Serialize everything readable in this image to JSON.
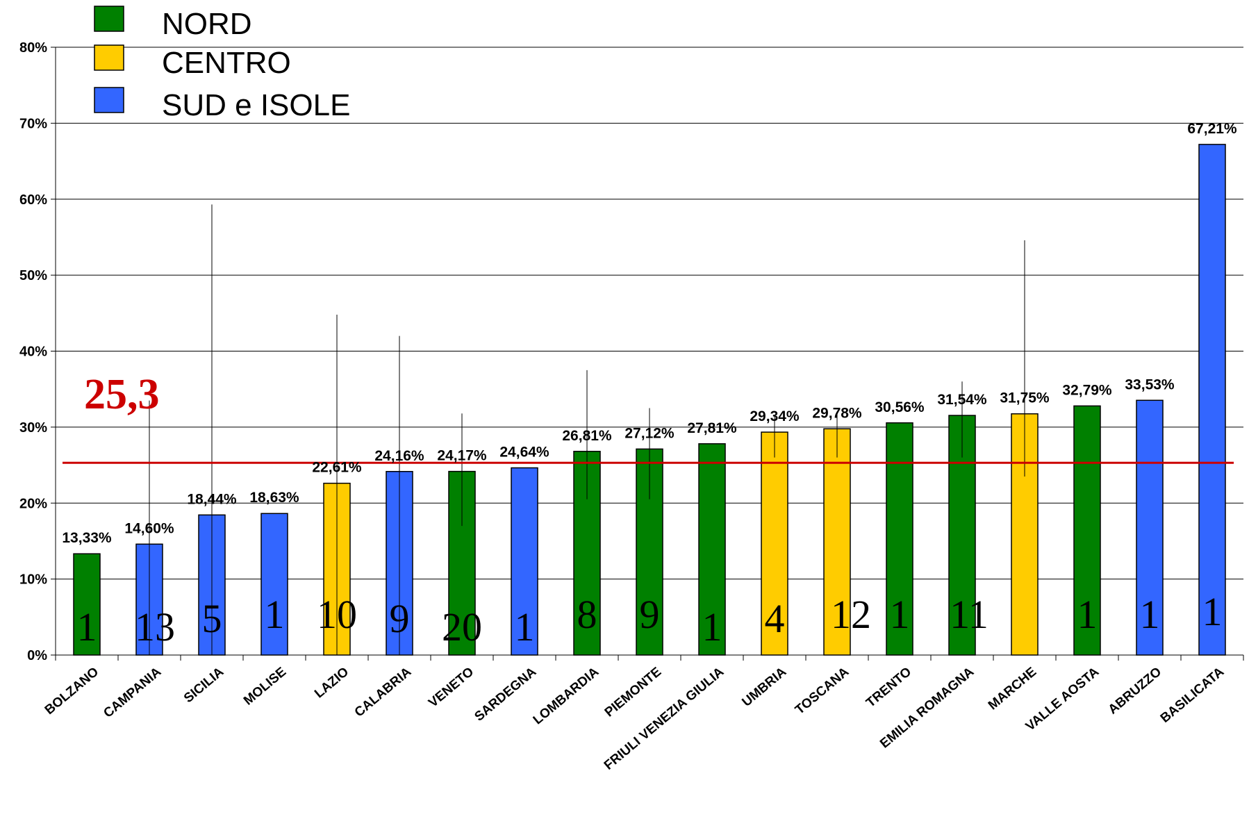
{
  "chart_data": {
    "type": "bar",
    "ylim": [
      0,
      80
    ],
    "yticks": [
      "0%",
      "10%",
      "20%",
      "30%",
      "40%",
      "50%",
      "60%",
      "70%",
      "80%"
    ],
    "grid": true,
    "legend_position": "top-left",
    "legend": [
      {
        "label": "NORD",
        "color": "#008000"
      },
      {
        "label": "CENTRO",
        "color": "#ffcc00"
      },
      {
        "label": "SUD e ISOLE",
        "color": "#3366ff"
      }
    ],
    "average": {
      "value": 25.3,
      "label": "25,3",
      "color": "#cc0000"
    },
    "categories": [
      "BOLZANO",
      "CAMPANIA",
      "SICILIA",
      "MOLISE",
      "LAZIO",
      "CALABRIA",
      "VENETO",
      "SARDEGNA",
      "LOMBARDIA",
      "PIEMONTE",
      "FRIULI VENEZIA GIULIA",
      "UMBRIA",
      "TOSCANA",
      "TRENTO",
      "EMILIA ROMAGNA",
      "MARCHE",
      "VALLE AOSTA",
      "ABRUZZO",
      "BASILICATA"
    ],
    "values": [
      13.33,
      14.6,
      18.44,
      18.63,
      22.61,
      24.16,
      24.17,
      24.64,
      26.81,
      27.12,
      27.81,
      29.34,
      29.78,
      30.56,
      31.54,
      31.75,
      32.79,
      33.53,
      67.21
    ],
    "value_labels": [
      "13,33%",
      "14,60%",
      "18,44%",
      "18,63%",
      "22,61%",
      "24,16%",
      "24,17%",
      "24,64%",
      "26,81%",
      "27,12%",
      "27,81%",
      "29,34%",
      "29,78%",
      "30,56%",
      "31,54%",
      "31,75%",
      "32,79%",
      "33,53%",
      "67,21%"
    ],
    "groups": [
      "NORD",
      "SUD e ISOLE",
      "SUD e ISOLE",
      "SUD e ISOLE",
      "CENTRO",
      "SUD e ISOLE",
      "NORD",
      "SUD e ISOLE",
      "NORD",
      "NORD",
      "NORD",
      "CENTRO",
      "CENTRO",
      "NORD",
      "NORD",
      "CENTRO",
      "NORD",
      "SUD e ISOLE",
      "SUD e ISOLE"
    ],
    "counts": [
      "1",
      "13",
      "5",
      "1",
      "10",
      "9",
      "20",
      "1",
      "8",
      "9",
      "1",
      "4",
      "12",
      "1",
      "11",
      "",
      "1",
      "1",
      "1"
    ],
    "error_bars": [
      null,
      [
        0,
        33.5
      ],
      [
        0,
        59.3
      ],
      null,
      [
        0,
        44.8
      ],
      [
        0,
        42.0
      ],
      [
        17,
        31.8
      ],
      null,
      [
        20.5,
        37.5
      ],
      [
        20.5,
        32.5
      ],
      null,
      [
        26,
        31.5
      ],
      [
        26,
        32
      ],
      null,
      [
        26,
        36
      ],
      [
        23.5,
        54.6
      ],
      null,
      null,
      null
    ]
  }
}
